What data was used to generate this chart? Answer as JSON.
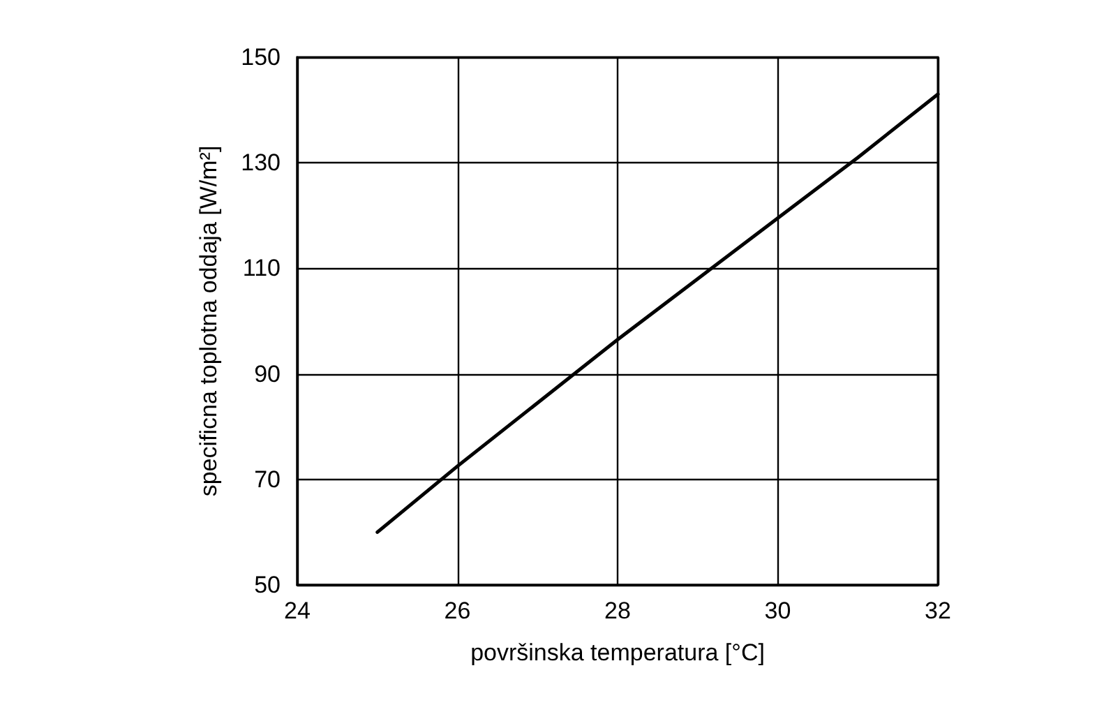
{
  "chart_data": {
    "type": "line",
    "xlabel": "površinska temperatura [°C]",
    "ylabel": "specificna toplotna oddaja [W/m²]",
    "x": [
      25,
      26,
      27,
      28,
      29,
      30,
      31,
      32
    ],
    "series": [
      {
        "color": "#000000",
        "values": [
          60,
          72.5,
          84.5,
          96.5,
          108,
          119.5,
          131,
          143
        ]
      }
    ],
    "xlim": [
      24,
      32
    ],
    "xticks": [
      24,
      26,
      28,
      30,
      32
    ],
    "ylim": [
      50,
      150
    ],
    "yticks": [
      50,
      70,
      90,
      110,
      130,
      150
    ],
    "grid": true,
    "marker": "none",
    "line_style": "solid"
  }
}
